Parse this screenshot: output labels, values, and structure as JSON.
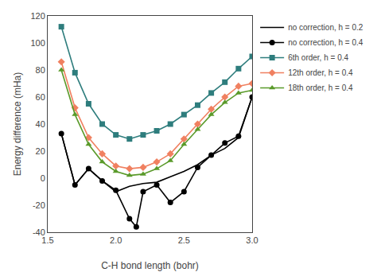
{
  "chart_data": {
    "type": "line",
    "xlabel": "C-H bond length (bohr)",
    "ylabel": "Energy difference (mHa)",
    "xlim": [
      1.5,
      3.0
    ],
    "ylim": [
      -40,
      120
    ],
    "xticks": [
      1.5,
      {
        "value": 2.0,
        "label": "2.0"
      },
      2.5,
      {
        "value": 3.0,
        "label": "3.0"
      }
    ],
    "yticks": [
      -40,
      -20,
      0,
      20,
      40,
      60,
      80,
      100,
      120
    ],
    "grid": false,
    "legend": "upper right",
    "series": [
      {
        "name": "no correction, h = 0.2",
        "color": "#000000",
        "marker": "none",
        "x": [
          1.6,
          1.7,
          1.8,
          1.9,
          2.0,
          2.1,
          2.2,
          2.3,
          2.4,
          2.5,
          2.6,
          2.7,
          2.8,
          2.9,
          3.0
        ],
        "values": [
          33,
          -5,
          7,
          -2,
          -10,
          -6,
          -4,
          -3,
          1,
          5,
          10,
          17,
          22,
          30,
          60
        ]
      },
      {
        "name": "no correction, h = 0.4",
        "color": "#000000",
        "marker": "circle",
        "x": [
          1.6,
          1.7,
          1.8,
          1.9,
          2.0,
          2.1,
          2.15,
          2.2,
          2.3,
          2.4,
          2.5,
          2.6,
          2.7,
          2.8,
          2.9,
          3.0
        ],
        "values": [
          33,
          -5,
          7,
          -2,
          -9,
          -30,
          -36,
          -10,
          -5,
          -18,
          -10,
          8,
          17,
          26,
          31,
          60
        ]
      },
      {
        "name": "6th order, h = 0.4",
        "color": "#2e7d7d",
        "marker": "square",
        "x": [
          1.6,
          1.7,
          1.8,
          1.9,
          2.0,
          2.1,
          2.2,
          2.3,
          2.4,
          2.5,
          2.6,
          2.7,
          2.8,
          2.9,
          3.0
        ],
        "values": [
          112,
          78,
          55,
          40,
          32,
          29,
          32,
          35,
          40,
          47,
          54,
          63,
          71,
          81,
          90
        ]
      },
      {
        "name": "12th order, h = 0.4",
        "color": "#f08060",
        "marker": "diamond",
        "x": [
          1.6,
          1.7,
          1.8,
          1.9,
          2.0,
          2.1,
          2.2,
          2.3,
          2.4,
          2.5,
          2.6,
          2.7,
          2.8,
          2.9,
          3.0
        ],
        "values": [
          86,
          52,
          30,
          18,
          9,
          7,
          8,
          12,
          18,
          29,
          40,
          51,
          60,
          68,
          70
        ]
      },
      {
        "name": "18th order, h = 0.4",
        "color": "#5a9a2a",
        "marker": "triangle-up",
        "x": [
          1.6,
          1.7,
          1.8,
          1.9,
          2.0,
          2.1,
          2.2,
          2.3,
          2.4,
          2.5,
          2.6,
          2.7,
          2.8,
          2.9,
          3.0
        ],
        "values": [
          80,
          47,
          25,
          12,
          5,
          2,
          3,
          7,
          13,
          25,
          36,
          47,
          56,
          63,
          65
        ]
      }
    ]
  }
}
